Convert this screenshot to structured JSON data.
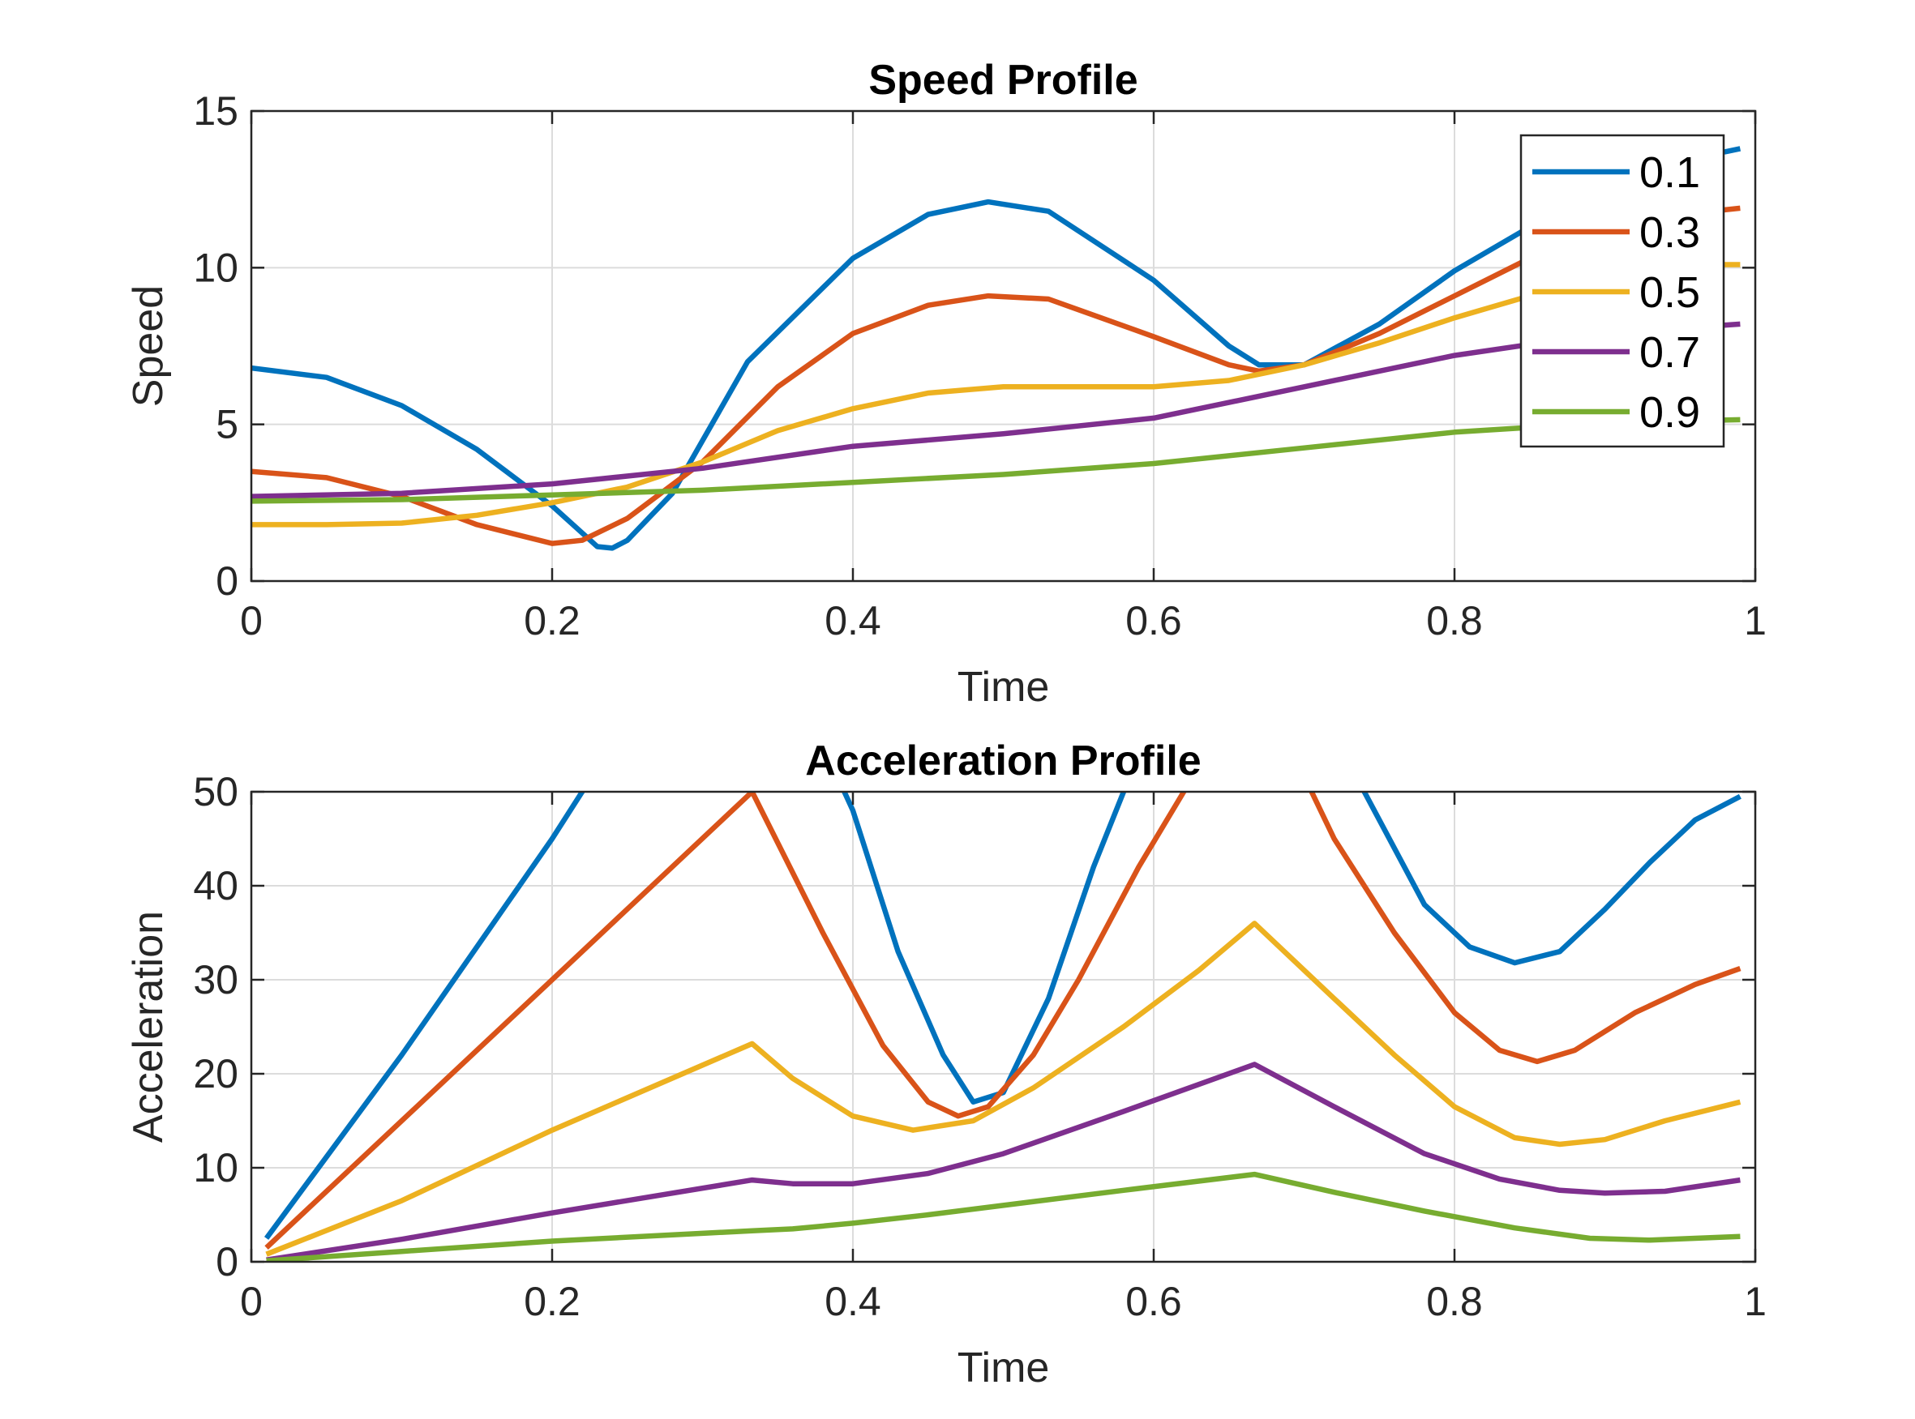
{
  "chart_data": [
    {
      "type": "line",
      "title": "Speed Profile",
      "xlabel": "Time",
      "ylabel": "Speed",
      "xlim": [
        0,
        1
      ],
      "ylim": [
        0,
        15
      ],
      "xticks": [
        "0",
        "0.2",
        "0.4",
        "0.6",
        "0.8",
        "1"
      ],
      "yticks": [
        "0",
        "5",
        "10",
        "15"
      ],
      "grid": true,
      "legend": {
        "placement": "top-right",
        "entries": [
          "0.1",
          "0.3",
          "0.5",
          "0.7",
          "0.9"
        ]
      },
      "series": [
        {
          "name": "0.1",
          "color": "#0072BD",
          "x": [
            0,
            0.05,
            0.1,
            0.15,
            0.2,
            0.23,
            0.24,
            0.25,
            0.28,
            0.33,
            0.4,
            0.45,
            0.49,
            0.53,
            0.6,
            0.65,
            0.67,
            0.7,
            0.75,
            0.8,
            0.85,
            0.9,
            0.95,
            0.98,
            0.99
          ],
          "y": [
            6.8,
            6.5,
            5.6,
            4.2,
            2.4,
            1.1,
            1.05,
            1.3,
            2.8,
            7.0,
            10.3,
            11.7,
            12.1,
            11.8,
            9.6,
            7.5,
            6.9,
            6.9,
            8.2,
            9.9,
            11.3,
            12.6,
            13.5,
            13.7,
            13.8
          ]
        },
        {
          "name": "0.3",
          "color": "#D95319",
          "x": [
            0,
            0.05,
            0.1,
            0.15,
            0.2,
            0.22,
            0.25,
            0.3,
            0.35,
            0.4,
            0.45,
            0.49,
            0.53,
            0.6,
            0.65,
            0.67,
            0.7,
            0.75,
            0.8,
            0.85,
            0.9,
            0.95,
            0.99
          ],
          "y": [
            3.5,
            3.3,
            2.7,
            1.8,
            1.2,
            1.3,
            2.0,
            3.8,
            6.2,
            7.9,
            8.8,
            9.1,
            9.0,
            7.8,
            6.9,
            6.7,
            6.9,
            7.9,
            9.1,
            10.3,
            11.2,
            11.7,
            11.9
          ]
        },
        {
          "name": "0.5",
          "color": "#EDB120",
          "x": [
            0,
            0.05,
            0.1,
            0.15,
            0.2,
            0.25,
            0.3,
            0.35,
            0.4,
            0.45,
            0.5,
            0.55,
            0.6,
            0.65,
            0.7,
            0.75,
            0.8,
            0.85,
            0.9,
            0.95,
            0.99
          ],
          "y": [
            1.8,
            1.8,
            1.85,
            2.1,
            2.5,
            3.0,
            3.8,
            4.8,
            5.5,
            6.0,
            6.2,
            6.2,
            6.2,
            6.4,
            6.9,
            7.6,
            8.4,
            9.1,
            9.7,
            10.1,
            10.1
          ]
        },
        {
          "name": "0.7",
          "color": "#7E2F8E",
          "x": [
            0,
            0.1,
            0.2,
            0.3,
            0.4,
            0.5,
            0.6,
            0.7,
            0.8,
            0.9,
            0.99
          ],
          "y": [
            2.7,
            2.8,
            3.1,
            3.6,
            4.3,
            4.7,
            5.2,
            6.2,
            7.2,
            7.9,
            8.2
          ]
        },
        {
          "name": "0.9",
          "color": "#77AC30",
          "x": [
            0,
            0.1,
            0.2,
            0.3,
            0.4,
            0.5,
            0.6,
            0.7,
            0.8,
            0.9,
            0.99
          ],
          "y": [
            2.55,
            2.6,
            2.75,
            2.9,
            3.15,
            3.4,
            3.75,
            4.25,
            4.75,
            5.05,
            5.15
          ]
        }
      ]
    },
    {
      "type": "line",
      "title": "Acceleration Profile",
      "xlabel": "Time",
      "ylabel": "Acceleration",
      "xlim": [
        0,
        1
      ],
      "ylim": [
        0,
        50
      ],
      "xticks": [
        "0",
        "0.2",
        "0.4",
        "0.6",
        "0.8",
        "1"
      ],
      "yticks": [
        "0",
        "10",
        "20",
        "30",
        "40",
        "50"
      ],
      "grid": true,
      "series": [
        {
          "name": "0.1",
          "color": "#0072BD",
          "segments": [
            {
              "x": [
                0.01,
                0.1,
                0.2,
                0.22,
                0.24
              ],
              "y": [
                2.5,
                22,
                45,
                50,
                55
              ]
            },
            {
              "x": [
                0.38,
                0.4,
                0.43,
                0.46,
                0.48,
                0.5,
                0.53,
                0.56,
                0.58,
                0.6
              ],
              "y": [
                55,
                48,
                33,
                22,
                17,
                18,
                28,
                42,
                50,
                58
              ]
            },
            {
              "x": [
                0.72,
                0.75,
                0.78,
                0.81,
                0.84,
                0.87,
                0.9,
                0.93,
                0.96,
                0.99
              ],
              "y": [
                56,
                47,
                38,
                33.5,
                31.8,
                33,
                37.5,
                42.5,
                47,
                49.5
              ]
            }
          ]
        },
        {
          "name": "0.3",
          "color": "#D95319",
          "segments": [
            {
              "x": [
                0.01,
                0.1,
                0.2,
                0.333,
                0.38,
                0.42,
                0.45,
                0.47,
                0.49,
                0.52,
                0.55,
                0.59,
                0.62,
                0.64
              ],
              "y": [
                1.5,
                15,
                30,
                50,
                35,
                23,
                17,
                15.5,
                16.5,
                22,
                30,
                42,
                50,
                55
              ]
            },
            {
              "x": [
                0.69,
                0.72,
                0.76,
                0.8,
                0.83,
                0.855,
                0.88,
                0.92,
                0.96,
                0.99
              ],
              "y": [
                55,
                45,
                35,
                26.5,
                22.5,
                21.3,
                22.5,
                26.5,
                29.5,
                31.2
              ]
            }
          ]
        },
        {
          "name": "0.5",
          "color": "#EDB120",
          "segments": [
            {
              "x": [
                0.01,
                0.1,
                0.2,
                0.333,
                0.36,
                0.4,
                0.44,
                0.48,
                0.52,
                0.58,
                0.63,
                0.667,
                0.72,
                0.76,
                0.8,
                0.84,
                0.87,
                0.9,
                0.94,
                0.99
              ],
              "y": [
                0.8,
                6.5,
                14,
                23.2,
                19.5,
                15.5,
                14,
                15,
                18.5,
                25,
                31,
                36,
                28,
                22,
                16.5,
                13.2,
                12.5,
                13,
                15,
                17
              ]
            }
          ]
        },
        {
          "name": "0.7",
          "color": "#7E2F8E",
          "segments": [
            {
              "x": [
                0.01,
                0.1,
                0.2,
                0.333,
                0.36,
                0.4,
                0.45,
                0.5,
                0.58,
                0.667,
                0.72,
                0.78,
                0.83,
                0.87,
                0.9,
                0.94,
                0.99
              ],
              "y": [
                0.2,
                2.4,
                5.2,
                8.7,
                8.3,
                8.3,
                9.4,
                11.5,
                16,
                21,
                16.5,
                11.5,
                8.8,
                7.6,
                7.3,
                7.5,
                8.7
              ]
            }
          ]
        },
        {
          "name": "0.9",
          "color": "#77AC30",
          "segments": [
            {
              "x": [
                0.01,
                0.1,
                0.2,
                0.333,
                0.36,
                0.4,
                0.45,
                0.5,
                0.58,
                0.667,
                0.72,
                0.78,
                0.84,
                0.89,
                0.93,
                0.99
              ],
              "y": [
                0.1,
                1.1,
                2.2,
                3.3,
                3.5,
                4.1,
                5.0,
                6.0,
                7.6,
                9.3,
                7.4,
                5.4,
                3.6,
                2.5,
                2.3,
                2.7
              ]
            }
          ]
        }
      ]
    }
  ]
}
